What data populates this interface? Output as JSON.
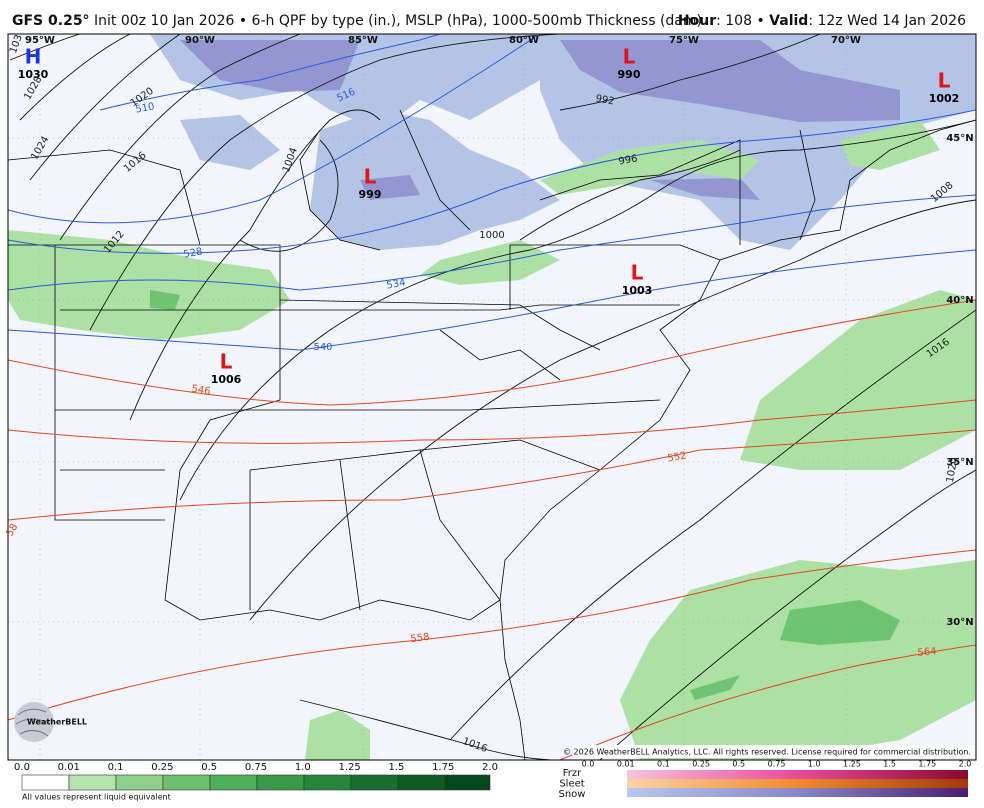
{
  "header": {
    "model": "GFS 0.25°",
    "description": "Init 00z 10 Jan 2026 • 6-h QPF by type (in.), MSLP (hPa), 1000-500mb Thickness (dam)",
    "hour_label": "Hour",
    "hour_value": ": 108 •",
    "valid_label": "Valid",
    "valid_value": ": 12z Wed 14 Jan 2026"
  },
  "pressure_centers": [
    {
      "symbol": "H",
      "value": "1030"
    },
    {
      "symbol": "L",
      "value": "990"
    },
    {
      "symbol": "L",
      "value": "1002"
    },
    {
      "symbol": "L",
      "value": "999"
    },
    {
      "symbol": "L",
      "value": "1003"
    },
    {
      "symbol": "L",
      "value": "1006"
    }
  ],
  "grid_labels": [
    "95°W",
    "90°W",
    "85°W",
    "80°W",
    "75°W",
    "70°W",
    "45°N",
    "40°N",
    "35°N",
    "30°N"
  ],
  "isobar_labels": [
    "103",
    "1028",
    "1024",
    "1020",
    "1016",
    "1012",
    "1004",
    "1000",
    "996",
    "992",
    "1008",
    "1016",
    "1016",
    "1020"
  ],
  "thickness_labels_blue": [
    "510",
    "516",
    "528",
    "534",
    "540"
  ],
  "thickness_labels_red": [
    "546",
    "552",
    "558",
    "564",
    "58"
  ],
  "copyright": "© 2026 WeatherBELL Analytics, LLC. All rights reserved. License required for commercial distribution.",
  "logo": "WeatherBELL",
  "legend": {
    "rain_ticks": [
      "0.0",
      "0.01",
      "0.1",
      "0.25",
      "0.5",
      "0.75",
      "1.0",
      "1.25",
      "1.5",
      "1.75",
      "2.0"
    ],
    "note": "All values represent liquid equivalent",
    "types": [
      "Frzr",
      "Sleet",
      "Snow"
    ],
    "mixed_ticks": [
      "0.0",
      "0.01",
      "0.1",
      "0.25",
      "0.5",
      "0.75",
      "1.0",
      "1.25",
      "1.5",
      "1.75",
      "2.0"
    ]
  }
}
